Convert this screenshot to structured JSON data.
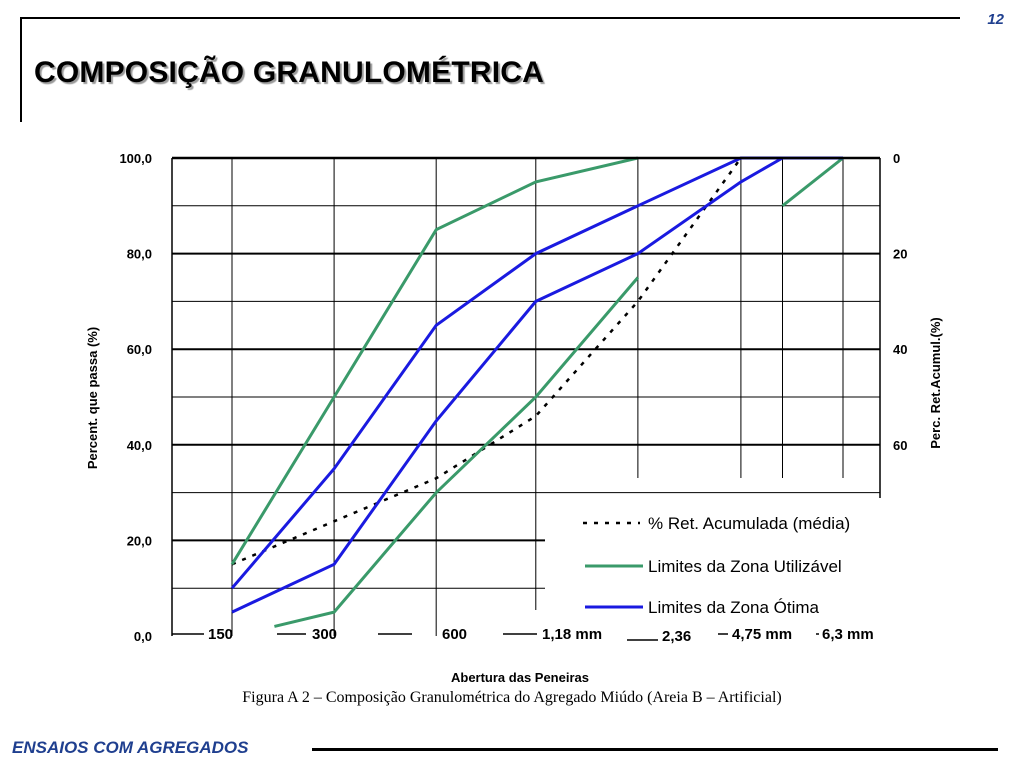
{
  "page": {
    "number": "12",
    "title": "COMPOSIÇÃO GRANULOMÉTRICA",
    "caption": "Figura A 2 – Composição Granulométrica do Agregado Miúdo (Areia B – Artificial)",
    "footer": "ENSAIOS COM AGREGADOS"
  },
  "chart_data": {
    "type": "line",
    "xlabel": "Abertura das Peneiras",
    "ylabel": "Percent. que passa (%)",
    "y2label": "Perc. Ret.Acumul.(%)",
    "ylim": [
      0,
      100
    ],
    "y_ticks": [
      "0,0",
      "20,0",
      "40,0",
      "60,0",
      "80,0",
      "100,0"
    ],
    "y2_ticks": [
      "0",
      "20",
      "40",
      "60"
    ],
    "y2_reversed": true,
    "x_tick_labels": [
      "150",
      "300",
      "600",
      "1,18 mm",
      "2,36",
      "4,75 mm",
      "6,3 mm"
    ],
    "x_sieves_mm": [
      0.15,
      0.3,
      0.6,
      1.18,
      2.36,
      4.75,
      6.3,
      9.5
    ],
    "grid": true,
    "legend_position": "bottom-right",
    "colors": {
      "green": "#3a9a6a",
      "blue": "#1a1ae0",
      "dotted": "#000000"
    },
    "series": [
      {
        "name": "% Ret. Acumulada (média)",
        "style": "dotted",
        "points": [
          {
            "x": 0.15,
            "y": 15
          },
          {
            "x": 0.3,
            "y": 24
          },
          {
            "x": 0.6,
            "y": 33
          },
          {
            "x": 1.18,
            "y": 46
          },
          {
            "x": 2.36,
            "y": 70
          },
          {
            "x": 4.75,
            "y": 100
          }
        ]
      },
      {
        "name": "Limites da Zona Utilizável",
        "style": "green",
        "segments": [
          [
            {
              "x": 0.15,
              "y": 15
            },
            {
              "x": 0.3,
              "y": 50
            },
            {
              "x": 0.6,
              "y": 85
            },
            {
              "x": 1.18,
              "y": 95
            },
            {
              "x": 2.36,
              "y": 100
            }
          ],
          [
            {
              "x": 0.2,
              "y": 2
            },
            {
              "x": 0.3,
              "y": 5
            },
            {
              "x": 0.6,
              "y": 30
            },
            {
              "x": 1.18,
              "y": 50
            },
            {
              "x": 2.36,
              "y": 75
            }
          ],
          [
            {
              "x": 6.3,
              "y": 90
            },
            {
              "x": 9.5,
              "y": 100
            }
          ]
        ]
      },
      {
        "name": "Limites da Zona Ótima",
        "style": "blue",
        "segments": [
          [
            {
              "x": 0.15,
              "y": 10
            },
            {
              "x": 0.3,
              "y": 35
            },
            {
              "x": 0.6,
              "y": 65
            },
            {
              "x": 1.18,
              "y": 80
            },
            {
              "x": 2.36,
              "y": 90
            },
            {
              "x": 4.75,
              "y": 100
            },
            {
              "x": 9.5,
              "y": 100
            }
          ],
          [
            {
              "x": 0.15,
              "y": 5
            },
            {
              "x": 0.3,
              "y": 15
            },
            {
              "x": 0.6,
              "y": 45
            },
            {
              "x": 1.18,
              "y": 70
            },
            {
              "x": 2.36,
              "y": 80
            },
            {
              "x": 4.75,
              "y": 95
            },
            {
              "x": 6.3,
              "y": 100
            }
          ]
        ]
      }
    ]
  }
}
